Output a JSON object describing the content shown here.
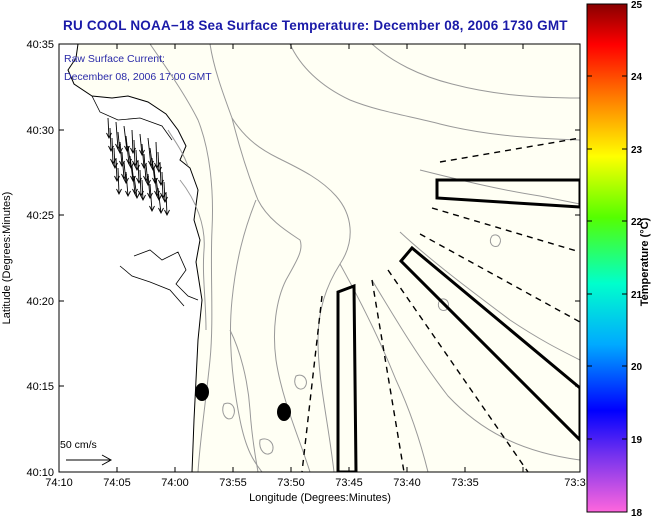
{
  "title": "RU COOL  NOAA−18  Sea Surface Temperature:  December 08, 2006 1730 GMT",
  "annotation": {
    "line1": "Raw Surface Current:",
    "line2": "December 08, 2006 17:00 GMT",
    "color": "#2a2aa8"
  },
  "axes": {
    "xlabel": "Longitude (Degrees:Minutes)",
    "ylabel": "Latitude (Degrees:Minutes)",
    "xticks": [
      "74:10",
      "74:05",
      "74:00",
      "73:55",
      "73:50",
      "73:45",
      "73:40",
      "73:35",
      "73:3"
    ],
    "yticks": [
      "40:35",
      "40:30",
      "40:25",
      "40:20",
      "40:15",
      "40:10"
    ]
  },
  "scale": {
    "label": "50 cm/s",
    "speed_cm_s": 50
  },
  "colorbar": {
    "label": "Temperature (°C)",
    "ticks": [
      "25",
      "24",
      "23",
      "22",
      "21",
      "20",
      "19",
      "18"
    ],
    "min": 18,
    "max": 25,
    "stops": [
      "#ff66dd",
      "#7733ee",
      "#0000ff",
      "#00aaff",
      "#00ffcc",
      "#55ff00",
      "#ffff00",
      "#ff7700",
      "#ff0000",
      "#880000"
    ]
  },
  "map_colors": {
    "background": "#fffff4",
    "land": "#ffffff",
    "coast": "#000000",
    "bathymetry": "#999999"
  }
}
